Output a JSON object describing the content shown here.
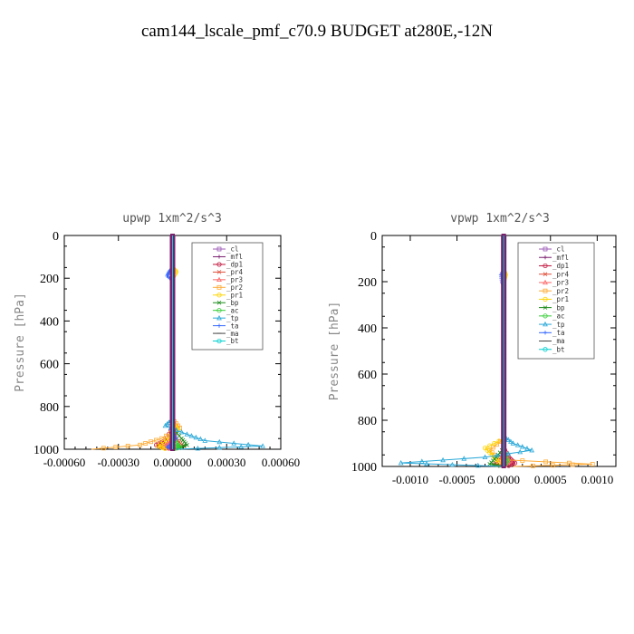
{
  "figure": {
    "title": "cam144_lscale_pmf_c70.9  BUDGET at280E,-12N"
  },
  "chart_data": [
    {
      "type": "line",
      "title": "upwp   1xm^2/s^3",
      "ylabel": "Pressure [hPa]",
      "xlabel": "",
      "xlim": [
        -0.0006,
        0.0006
      ],
      "ylim": [
        1000,
        0
      ],
      "xticks": [
        -0.0006,
        -0.0003,
        0.0,
        0.0003,
        0.0006
      ],
      "xtick_labels": [
        "-0.00060",
        "-0.00030",
        "0.00000",
        "0.00030",
        "0.00060"
      ],
      "yticks": [
        0,
        200,
        400,
        600,
        800,
        1000
      ],
      "ytick_labels": [
        "0",
        "200",
        "400",
        "600",
        "800",
        "1000"
      ],
      "legend_position": "top-right",
      "series": [
        {
          "name": "_cl",
          "color": "#9b59b6",
          "p": [
            0,
            1000
          ],
          "x": [
            0,
            0
          ]
        },
        {
          "name": "_mfl",
          "color": "#7a1f6e",
          "p": [
            0,
            1000
          ],
          "x": [
            0,
            0
          ]
        },
        {
          "name": "_dp1",
          "color": "#c0143c",
          "p": [
            900,
            960,
            980,
            1000
          ],
          "x": [
            0,
            -4e-05,
            -9e-05,
            -2e-05
          ]
        },
        {
          "name": "_pr4",
          "color": "#e0503c",
          "p": [
            920,
            960,
            985,
            1000
          ],
          "x": [
            0,
            3e-05,
            6e-05,
            1e-05
          ]
        },
        {
          "name": "_pr3",
          "color": "#ff6666",
          "p": [
            930,
            970,
            990,
            1000
          ],
          "x": [
            0,
            -2e-05,
            -5e-05,
            0
          ]
        },
        {
          "name": "_pr2",
          "color": "#ffaa33",
          "p": [
            860,
            900,
            950,
            980,
            1000
          ],
          "x": [
            0,
            4e-05,
            -6e-05,
            -0.00018,
            -0.00045
          ]
        },
        {
          "name": "_pr1",
          "color": "#ffd400",
          "p": [
            150,
            170,
            200,
            880,
            910,
            950,
            985,
            1000
          ],
          "x": [
            0,
            2e-05,
            0,
            0,
            3e-05,
            -2e-05,
            -8e-05,
            -3e-05
          ]
        },
        {
          "name": "_bp",
          "color": "#1a8a1a",
          "p": [
            900,
            950,
            980,
            1000
          ],
          "x": [
            0,
            5e-05,
            8e-05,
            2e-05
          ]
        },
        {
          "name": "_ac",
          "color": "#33cc33",
          "p": [
            920,
            970,
            990,
            1000
          ],
          "x": [
            0,
            2e-05,
            4e-05,
            0
          ]
        },
        {
          "name": "_tp",
          "color": "#2aa8d8",
          "p": [
            860,
            890,
            930,
            960,
            985,
            1000
          ],
          "x": [
            0,
            -4e-05,
            8e-05,
            0.00018,
            0.0005,
            2e-05
          ]
        },
        {
          "name": "_ta",
          "color": "#3366ff",
          "p": [
            150,
            170,
            190,
            210,
            900,
            950,
            990,
            1000
          ],
          "x": [
            0,
            -2e-05,
            -3e-05,
            0,
            0,
            2e-05,
            -3e-05,
            0
          ]
        },
        {
          "name": "_ma",
          "color": "#444444",
          "p": [
            0,
            1000
          ],
          "x": [
            0,
            0
          ]
        },
        {
          "name": "_bt",
          "color": "#00d0d0",
          "p": [
            0,
            1000
          ],
          "x": [
            0,
            0
          ]
        }
      ]
    },
    {
      "type": "line",
      "title": "vpwp   1xm^2/s^3",
      "ylabel": "Pressure [hPa]",
      "xlabel": "",
      "xlim": [
        -0.0013,
        0.0012
      ],
      "ylim": [
        1000,
        0
      ],
      "xticks": [
        -0.001,
        -0.0005,
        0.0,
        0.0005,
        0.001
      ],
      "xtick_labels": [
        "-0.0010",
        "-0.0005",
        "0.0000",
        "0.0005",
        "0.0010"
      ],
      "yticks": [
        0,
        200,
        400,
        600,
        800,
        1000
      ],
      "ytick_labels": [
        "0",
        "200",
        "400",
        "600",
        "800",
        "1000"
      ],
      "legend_position": "top-right",
      "series": [
        {
          "name": "_cl",
          "color": "#9b59b6",
          "p": [
            0,
            1000
          ],
          "x": [
            0,
            0
          ]
        },
        {
          "name": "_mfl",
          "color": "#7a1f6e",
          "p": [
            0,
            1000
          ],
          "x": [
            0,
            0
          ]
        },
        {
          "name": "_dp1",
          "color": "#c0143c",
          "p": [
            920,
            960,
            985,
            1000
          ],
          "x": [
            0,
            5e-05,
            0.00012,
            3e-05
          ]
        },
        {
          "name": "_pr4",
          "color": "#e0503c",
          "p": [
            930,
            970,
            990,
            1000
          ],
          "x": [
            0,
            -4e-05,
            -0.0001,
            0
          ]
        },
        {
          "name": "_pr3",
          "color": "#ff6666",
          "p": [
            940,
            975,
            1000
          ],
          "x": [
            0,
            6e-05,
            0
          ]
        },
        {
          "name": "_pr2",
          "color": "#ffaa33",
          "p": [
            880,
            930,
            970,
            990,
            1000
          ],
          "x": [
            0,
            -0.00015,
            -5e-05,
            0.00095,
            0.0001
          ]
        },
        {
          "name": "_pr1",
          "color": "#ffd400",
          "p": [
            150,
            170,
            200,
            880,
            920,
            960,
            1000
          ],
          "x": [
            0,
            2e-05,
            0,
            0,
            -0.0002,
            -0.0001,
            0
          ]
        },
        {
          "name": "_bp",
          "color": "#1a8a1a",
          "p": [
            920,
            960,
            990,
            1000
          ],
          "x": [
            0,
            -8e-05,
            -0.00015,
            0
          ]
        },
        {
          "name": "_ac",
          "color": "#33cc33",
          "p": [
            930,
            975,
            1000
          ],
          "x": [
            0,
            4e-05,
            0
          ]
        },
        {
          "name": "_tp",
          "color": "#2aa8d8",
          "p": [
            870,
            900,
            930,
            960,
            985,
            1000
          ],
          "x": [
            0,
            0.0001,
            0.0003,
            -0.0002,
            -0.0011,
            0
          ]
        },
        {
          "name": "_ta",
          "color": "#3366ff",
          "p": [
            150,
            170,
            200,
            220,
            1000
          ],
          "x": [
            0,
            -3e-05,
            -2e-05,
            0,
            0
          ]
        },
        {
          "name": "_ma",
          "color": "#444444",
          "p": [
            0,
            1000
          ],
          "x": [
            0,
            0
          ]
        },
        {
          "name": "_bt",
          "color": "#00d0d0",
          "p": [
            0,
            1000
          ],
          "x": [
            0,
            0
          ]
        }
      ]
    }
  ]
}
